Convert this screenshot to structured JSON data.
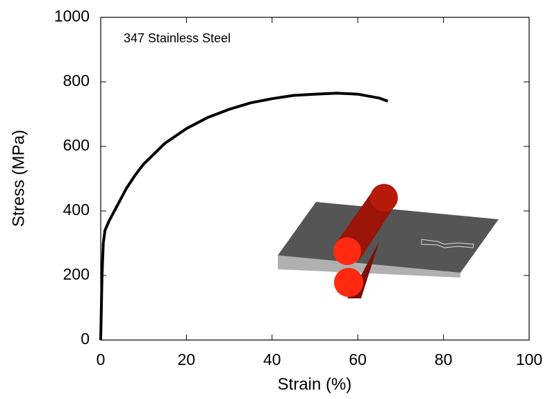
{
  "chart_data": {
    "type": "line",
    "annotation": "347 Stainless Steel",
    "xlabel": "Strain (%)",
    "ylabel": "Stress (MPa)",
    "x": [
      0,
      0.3,
      0.6,
      1,
      2,
      4,
      6,
      8,
      10,
      15,
      20,
      25,
      30,
      35,
      40,
      45,
      50,
      55,
      60,
      65,
      67
    ],
    "values": [
      0,
      200,
      300,
      340,
      370,
      420,
      470,
      510,
      545,
      610,
      655,
      690,
      715,
      735,
      748,
      758,
      762,
      765,
      762,
      750,
      740
    ],
    "color": "#000000",
    "xlim": [
      0,
      100
    ],
    "xticks": [
      0,
      20,
      40,
      60,
      80,
      100
    ],
    "ylim": [
      0,
      1000
    ],
    "yticks": [
      0,
      200,
      400,
      600,
      800,
      1000
    ]
  }
}
